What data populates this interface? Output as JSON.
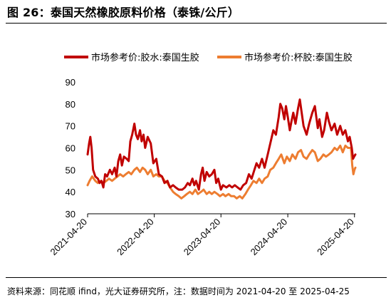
{
  "figure_title": "图 26：泰国天然橡胶原料价格（泰铢/公斤）",
  "source_note": "资料来源：同花顺 ifind，光大证券研究所，注：数据时间为 2021-04-20 至 2025-04-25",
  "chart_data": {
    "type": "line",
    "ylim": [
      30,
      90
    ],
    "y_ticks": [
      30,
      40,
      50,
      60,
      70,
      80,
      90
    ],
    "x_range": [
      "2021-04-20",
      "2025-04-25"
    ],
    "x_ticks": [
      "2021-04-20",
      "2022-04-20",
      "2023-04-20",
      "2024-04-20",
      "2025-04-20"
    ],
    "grid": false,
    "legend_position": "top",
    "series": [
      {
        "name": "市场参考价:胶水:泰国生胶",
        "color": "#c00000",
        "points": [
          [
            "2021-04-20",
            57
          ],
          [
            "2021-04-28",
            62
          ],
          [
            "2021-05-05",
            65
          ],
          [
            "2021-05-12",
            60
          ],
          [
            "2021-05-20",
            50
          ],
          [
            "2021-06-01",
            47
          ],
          [
            "2021-06-15",
            46
          ],
          [
            "2021-06-25",
            44
          ],
          [
            "2021-07-05",
            45
          ],
          [
            "2021-07-15",
            42
          ],
          [
            "2021-07-25",
            48
          ],
          [
            "2021-08-05",
            47
          ],
          [
            "2021-08-20",
            50
          ],
          [
            "2021-09-01",
            48
          ],
          [
            "2021-09-15",
            51
          ],
          [
            "2021-09-25",
            47
          ],
          [
            "2021-10-05",
            54
          ],
          [
            "2021-10-15",
            57
          ],
          [
            "2021-10-25",
            52
          ],
          [
            "2021-11-05",
            56
          ],
          [
            "2021-11-20",
            55
          ],
          [
            "2021-12-01",
            54
          ],
          [
            "2021-12-10",
            63
          ],
          [
            "2021-12-20",
            66
          ],
          [
            "2022-01-01",
            71
          ],
          [
            "2022-01-10",
            66
          ],
          [
            "2022-01-20",
            64
          ],
          [
            "2022-02-01",
            68
          ],
          [
            "2022-02-10",
            63
          ],
          [
            "2022-02-20",
            66
          ],
          [
            "2022-03-01",
            60
          ],
          [
            "2022-03-15",
            65
          ],
          [
            "2022-04-01",
            62
          ],
          [
            "2022-04-15",
            53
          ],
          [
            "2022-05-01",
            55
          ],
          [
            "2022-05-15",
            48
          ],
          [
            "2022-06-01",
            47
          ],
          [
            "2022-06-15",
            44
          ],
          [
            "2022-07-01",
            45
          ],
          [
            "2022-07-15",
            42
          ],
          [
            "2022-08-01",
            43
          ],
          [
            "2022-08-15",
            42
          ],
          [
            "2022-09-01",
            41
          ],
          [
            "2022-09-20",
            41
          ],
          [
            "2022-10-05",
            42
          ],
          [
            "2022-10-20",
            44
          ],
          [
            "2022-11-01",
            43
          ],
          [
            "2022-11-15",
            46
          ],
          [
            "2022-11-25",
            43
          ],
          [
            "2022-12-05",
            45
          ],
          [
            "2022-12-20",
            41
          ],
          [
            "2023-01-01",
            48
          ],
          [
            "2023-01-10",
            51
          ],
          [
            "2023-01-20",
            45
          ],
          [
            "2023-02-01",
            49
          ],
          [
            "2023-02-15",
            47
          ],
          [
            "2023-03-01",
            48
          ],
          [
            "2023-03-15",
            50
          ],
          [
            "2023-03-25",
            44
          ],
          [
            "2023-04-05",
            46
          ],
          [
            "2023-04-20",
            41
          ],
          [
            "2023-05-01",
            43
          ],
          [
            "2023-05-20",
            42
          ],
          [
            "2023-06-05",
            43
          ],
          [
            "2023-06-20",
            42
          ],
          [
            "2023-07-05",
            43
          ],
          [
            "2023-07-20",
            42
          ],
          [
            "2023-08-05",
            41
          ],
          [
            "2023-08-20",
            43
          ],
          [
            "2023-09-05",
            44
          ],
          [
            "2023-09-20",
            48
          ],
          [
            "2023-10-05",
            46
          ],
          [
            "2023-10-20",
            50
          ],
          [
            "2023-11-01",
            53
          ],
          [
            "2023-11-15",
            51
          ],
          [
            "2023-12-01",
            55
          ],
          [
            "2023-12-15",
            51
          ],
          [
            "2024-01-01",
            57
          ],
          [
            "2024-01-15",
            62
          ],
          [
            "2024-02-01",
            68
          ],
          [
            "2024-02-15",
            66
          ],
          [
            "2024-03-01",
            74
          ],
          [
            "2024-03-10",
            80
          ],
          [
            "2024-03-20",
            78
          ],
          [
            "2024-04-01",
            73
          ],
          [
            "2024-04-10",
            79
          ],
          [
            "2024-04-20",
            74
          ],
          [
            "2024-05-01",
            68
          ],
          [
            "2024-05-10",
            72
          ],
          [
            "2024-05-20",
            76
          ],
          [
            "2024-06-01",
            71
          ],
          [
            "2024-06-15",
            78
          ],
          [
            "2024-06-25",
            82
          ],
          [
            "2024-07-05",
            76
          ],
          [
            "2024-07-15",
            70
          ],
          [
            "2024-08-01",
            66
          ],
          [
            "2024-08-15",
            71
          ],
          [
            "2024-09-01",
            76
          ],
          [
            "2024-09-15",
            79
          ],
          [
            "2024-10-01",
            69
          ],
          [
            "2024-10-10",
            73
          ],
          [
            "2024-10-25",
            65
          ],
          [
            "2024-11-05",
            68
          ],
          [
            "2024-11-20",
            76
          ],
          [
            "2024-12-01",
            72
          ],
          [
            "2024-12-15",
            68
          ],
          [
            "2025-01-01",
            71
          ],
          [
            "2025-01-15",
            66
          ],
          [
            "2025-02-01",
            70
          ],
          [
            "2025-02-15",
            66
          ],
          [
            "2025-03-01",
            68
          ],
          [
            "2025-03-15",
            63
          ],
          [
            "2025-03-25",
            65
          ],
          [
            "2025-04-05",
            60
          ],
          [
            "2025-04-12",
            55
          ],
          [
            "2025-04-18",
            56
          ],
          [
            "2025-04-25",
            57
          ]
        ]
      },
      {
        "name": "市场参考价:杯胶:泰国生胶",
        "color": "#ed7d31",
        "points": [
          [
            "2021-04-20",
            43
          ],
          [
            "2021-05-01",
            45
          ],
          [
            "2021-05-15",
            47
          ],
          [
            "2021-06-01",
            45
          ],
          [
            "2021-06-15",
            44
          ],
          [
            "2021-07-01",
            45
          ],
          [
            "2021-07-15",
            44
          ],
          [
            "2021-08-01",
            45
          ],
          [
            "2021-08-15",
            46
          ],
          [
            "2021-09-01",
            45
          ],
          [
            "2021-09-15",
            46
          ],
          [
            "2021-10-01",
            47
          ],
          [
            "2021-10-15",
            48
          ],
          [
            "2021-11-01",
            47
          ],
          [
            "2021-11-15",
            48
          ],
          [
            "2021-12-01",
            49
          ],
          [
            "2021-12-15",
            48
          ],
          [
            "2022-01-01",
            50
          ],
          [
            "2022-01-15",
            51
          ],
          [
            "2022-02-01",
            49
          ],
          [
            "2022-02-15",
            51
          ],
          [
            "2022-03-01",
            50
          ],
          [
            "2022-03-15",
            48
          ],
          [
            "2022-04-01",
            50
          ],
          [
            "2022-04-15",
            47
          ],
          [
            "2022-05-01",
            48
          ],
          [
            "2022-05-15",
            47
          ],
          [
            "2022-06-01",
            47
          ],
          [
            "2022-06-15",
            45
          ],
          [
            "2022-07-01",
            44
          ],
          [
            "2022-07-15",
            42
          ],
          [
            "2022-08-01",
            40
          ],
          [
            "2022-08-15",
            39
          ],
          [
            "2022-09-01",
            38
          ],
          [
            "2022-09-15",
            37
          ],
          [
            "2022-10-01",
            38
          ],
          [
            "2022-10-15",
            39
          ],
          [
            "2022-11-01",
            40
          ],
          [
            "2022-11-15",
            39
          ],
          [
            "2022-12-01",
            41
          ],
          [
            "2022-12-15",
            39
          ],
          [
            "2023-01-01",
            40
          ],
          [
            "2023-01-15",
            41
          ],
          [
            "2023-02-01",
            39
          ],
          [
            "2023-02-15",
            40
          ],
          [
            "2023-03-01",
            39
          ],
          [
            "2023-03-15",
            40
          ],
          [
            "2023-04-01",
            39
          ],
          [
            "2023-04-15",
            38
          ],
          [
            "2023-05-01",
            39
          ],
          [
            "2023-05-15",
            38
          ],
          [
            "2023-06-01",
            39
          ],
          [
            "2023-06-15",
            38
          ],
          [
            "2023-07-01",
            38
          ],
          [
            "2023-07-15",
            37
          ],
          [
            "2023-08-01",
            38
          ],
          [
            "2023-08-15",
            37
          ],
          [
            "2023-09-01",
            39
          ],
          [
            "2023-09-15",
            41
          ],
          [
            "2023-10-01",
            43
          ],
          [
            "2023-10-15",
            45
          ],
          [
            "2023-11-01",
            44
          ],
          [
            "2023-11-15",
            46
          ],
          [
            "2023-12-01",
            44
          ],
          [
            "2023-12-15",
            46
          ],
          [
            "2024-01-01",
            47
          ],
          [
            "2024-01-15",
            50
          ],
          [
            "2024-02-01",
            51
          ],
          [
            "2024-02-15",
            53
          ],
          [
            "2024-03-01",
            55
          ],
          [
            "2024-03-15",
            57
          ],
          [
            "2024-04-01",
            53
          ],
          [
            "2024-04-15",
            56
          ],
          [
            "2024-05-01",
            54
          ],
          [
            "2024-05-15",
            57
          ],
          [
            "2024-06-01",
            55
          ],
          [
            "2024-06-15",
            58
          ],
          [
            "2024-07-01",
            59
          ],
          [
            "2024-07-15",
            56
          ],
          [
            "2024-08-01",
            55
          ],
          [
            "2024-08-15",
            57
          ],
          [
            "2024-09-01",
            59
          ],
          [
            "2024-09-15",
            58
          ],
          [
            "2024-10-01",
            54
          ],
          [
            "2024-10-15",
            55
          ],
          [
            "2024-11-01",
            57
          ],
          [
            "2024-11-15",
            56
          ],
          [
            "2024-12-01",
            57
          ],
          [
            "2024-12-15",
            58
          ],
          [
            "2025-01-01",
            60
          ],
          [
            "2025-01-15",
            59
          ],
          [
            "2025-02-01",
            61
          ],
          [
            "2025-02-15",
            58
          ],
          [
            "2025-03-01",
            61
          ],
          [
            "2025-03-15",
            60
          ],
          [
            "2025-04-01",
            60
          ],
          [
            "2025-04-08",
            52
          ],
          [
            "2025-04-14",
            48
          ],
          [
            "2025-04-20",
            50
          ],
          [
            "2025-04-25",
            51
          ]
        ]
      }
    ]
  }
}
